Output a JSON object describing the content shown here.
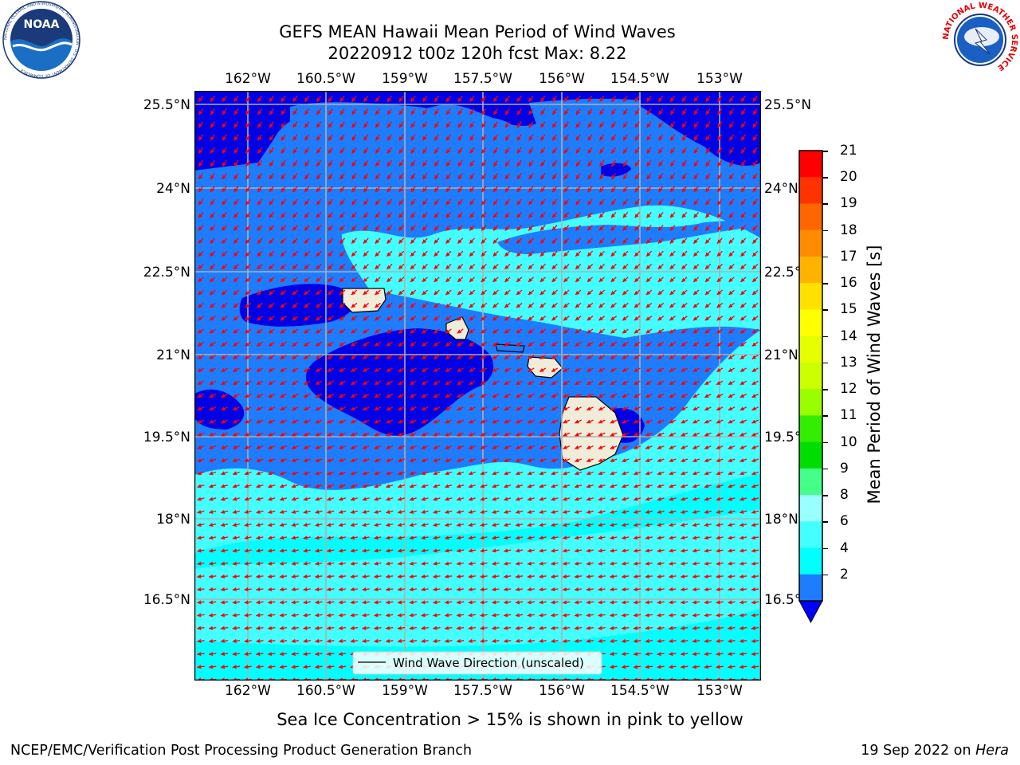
{
  "title": {
    "line1": "GEFS MEAN Hawaii Mean Period of Wind Waves",
    "line2": "20220912 t00z 120h fcst   Max: 8.22"
  },
  "map": {
    "lon_ticks": [
      "162°W",
      "160.5°W",
      "159°W",
      "157.5°W",
      "156°W",
      "154.5°W",
      "153°W"
    ],
    "lat_ticks": [
      "25.5°N",
      "24°N",
      "22.5°N",
      "21°N",
      "19.5°N",
      "18°N",
      "16.5°N"
    ],
    "legend_label": "Wind Wave Direction (unscaled)",
    "colors": {
      "band_2_4": "#1e7cff",
      "band_4_6": "#00ffff",
      "band_6_8": "#44ffff",
      "below_2": "#0000e6",
      "land": "#f0ecda",
      "arrow": "#ff0000"
    }
  },
  "colorbar": {
    "label": "Mean Period of Wind Waves [s]",
    "ticks": [
      "21",
      "20",
      "19",
      "18",
      "17",
      "16",
      "15",
      "14",
      "13",
      "12",
      "11",
      "10",
      "9",
      "8",
      "6",
      "4",
      "2"
    ],
    "colors": [
      "#ff0000",
      "#ff3300",
      "#ff6600",
      "#ff8c00",
      "#ffb300",
      "#ffe100",
      "#ffff00",
      "#e6ff00",
      "#ccff00",
      "#99ff00",
      "#33ee00",
      "#00dd00",
      "#44ff88",
      "#99ffff",
      "#44ffff",
      "#00ffff",
      "#1e7cff"
    ],
    "under_color": "#0000ff"
  },
  "caption": "Sea Ice Concentration > 15% is shown in pink to yellow",
  "footer": {
    "left": "NCEP/EMC/Verification Post Processing Product Generation Branch",
    "right_prefix": "19 Sep 2022 on ",
    "right_host": "Hera"
  },
  "logos": {
    "noaa": "NOAA",
    "noaa_ring": "NATIONAL OCEANIC AND ATMOSPHERIC ADMINISTRATION · U.S. DEPARTMENT OF COMMERCE",
    "nws_ring": "NATIONAL WEATHER SERVICE"
  }
}
